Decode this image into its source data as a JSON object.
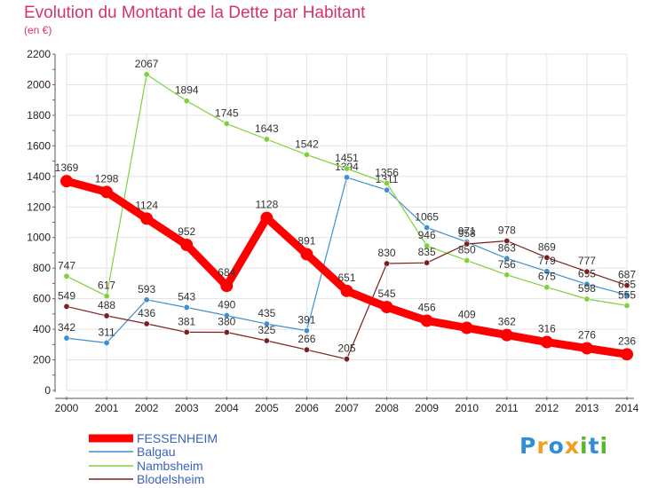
{
  "chart_data": {
    "type": "line",
    "title": "Evolution du Montant de la Dette par Habitant",
    "subtitle": "(en €)",
    "x": [
      "2000",
      "2001",
      "2002",
      "2003",
      "2004",
      "2005",
      "2006",
      "2007",
      "2008",
      "2009",
      "2010",
      "2011",
      "2012",
      "2013",
      "2014"
    ],
    "ylim": [
      0,
      2200
    ],
    "yticks": [
      0,
      200,
      400,
      600,
      800,
      1000,
      1200,
      1400,
      1600,
      1800,
      2000,
      2200
    ],
    "grid": true,
    "legend_position": "bottom-left",
    "series": [
      {
        "name": "FESSENHEIM",
        "color": "#ff0000",
        "values": [
          1369,
          1298,
          1124,
          952,
          684,
          1128,
          891,
          651,
          545,
          456,
          409,
          362,
          316,
          276,
          236
        ]
      },
      {
        "name": "Balgau",
        "color": "#3f8fd0",
        "values": [
          342,
          311,
          593,
          543,
          490,
          435,
          391,
          1394,
          1311,
          1065,
          971,
          863,
          779,
          695,
          625
        ]
      },
      {
        "name": "Nambsheim",
        "color": "#7fd13b",
        "values": [
          747,
          617,
          2067,
          1894,
          1745,
          1643,
          1542,
          1451,
          1356,
          946,
          850,
          756,
          675,
          598,
          555
        ]
      },
      {
        "name": "Blodelsheim",
        "color": "#7a2020",
        "values": [
          549,
          488,
          436,
          381,
          380,
          325,
          266,
          205,
          830,
          835,
          958,
          978,
          869,
          777,
          687
        ]
      }
    ]
  },
  "logo": {
    "letters": [
      "P",
      "r",
      "o",
      "x",
      "i",
      "t",
      "i"
    ],
    "colors": [
      "#2f8fd6",
      "#f29e1f",
      "#2f8fd6",
      "#f29e1f",
      "#59b82a",
      "#2f8fd6",
      "#59b82a"
    ]
  }
}
